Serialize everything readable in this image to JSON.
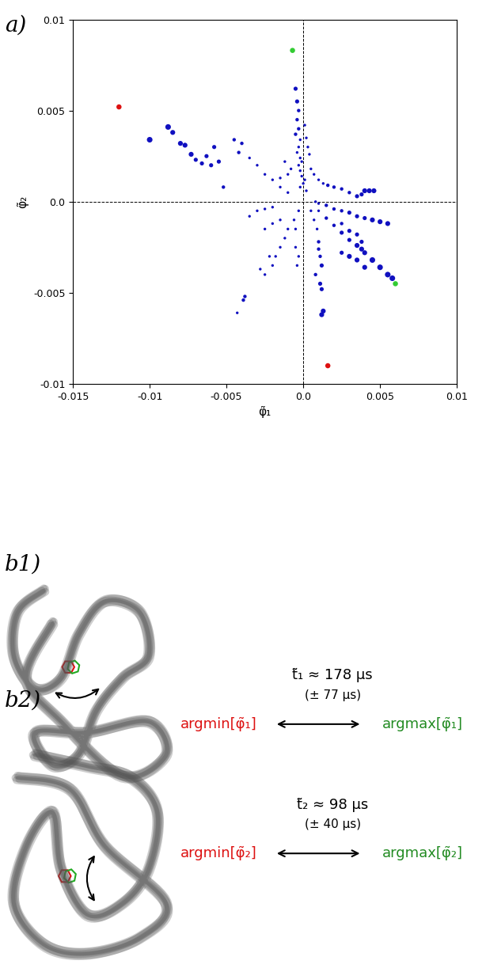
{
  "chart_data": {
    "type": "scatter",
    "panel_label": "a)",
    "x_label": "φ̃₁",
    "y_label": "φ̃₂",
    "xlim": [
      -0.015,
      0.01
    ],
    "ylim": [
      -0.01,
      0.01
    ],
    "xticks": [
      -0.015,
      -0.01,
      -0.005,
      {
        "value": 0,
        "label": "0.0"
      },
      0.005,
      0.01
    ],
    "yticks": [
      -0.01,
      -0.005,
      {
        "value": 0,
        "label": "0.0"
      },
      0.005,
      0.01
    ],
    "reference_lines": {
      "x": 0,
      "y": 0
    },
    "series": [
      {
        "color": "#1010c0",
        "x": [
          -0.01,
          -0.0088,
          -0.0085,
          -0.008,
          -0.0077,
          -0.0073,
          -0.007,
          -0.0066,
          -0.0063,
          -0.006,
          -0.0058,
          -0.0055,
          -0.0052,
          -0.0045,
          -0.0042,
          -0.004,
          -0.0035,
          -0.003,
          -0.0025,
          -0.002,
          -0.0015,
          -0.001,
          -0.0005,
          -0.0004,
          -0.0003,
          -0.0004,
          -0.0003,
          -0.0005,
          -0.0002,
          -0.0003,
          -0.0004,
          -0.0002,
          -0.0001,
          -0.0003,
          -0.0002,
          -0.0001,
          0.0001,
          0.0,
          -0.0002,
          0.0002,
          0.0003,
          0.0004,
          0.0002,
          0.0001,
          -0.0008,
          -0.001,
          -0.0012,
          -0.0015,
          0.0005,
          0.0007,
          0.001,
          0.0013,
          0.0016,
          0.002,
          0.0025,
          0.003,
          0.0035,
          0.004,
          0.0043,
          0.0046,
          0.0038,
          0.0008,
          0.001,
          0.0015,
          0.002,
          0.0025,
          0.003,
          0.0035,
          0.004,
          0.0045,
          0.005,
          0.0055,
          0.001,
          0.0015,
          0.002,
          0.0025,
          0.003,
          0.0035,
          0.0038,
          0.004,
          0.0045,
          0.005,
          0.0055,
          0.0058,
          0.0025,
          0.003,
          0.0035,
          0.0038,
          0.0025,
          0.003,
          0.0035,
          0.004,
          0.0005,
          0.0007,
          0.0009,
          0.001,
          0.001,
          0.0011,
          0.0012,
          0.0011,
          0.0012,
          0.0013,
          0.0012,
          0.0008,
          -0.0003,
          -0.0006,
          -0.001,
          -0.0012,
          -0.0015,
          -0.0018,
          -0.002,
          -0.0025,
          -0.0038,
          -0.0039,
          -0.0043,
          -0.0022,
          -0.0028,
          -0.0015,
          -0.002,
          -0.0025,
          -0.003,
          -0.0025,
          -0.002,
          -0.0035,
          -0.0005,
          -0.0003,
          -0.0004,
          -0.0005
        ],
        "values": [
          0.0034,
          0.0041,
          0.0038,
          0.0032,
          0.0031,
          0.0026,
          0.0023,
          0.0021,
          0.0025,
          0.002,
          0.003,
          0.0022,
          0.0008,
          0.0034,
          0.0027,
          0.0032,
          0.0024,
          0.002,
          0.0015,
          0.0012,
          0.0008,
          0.0005,
          0.0062,
          0.0055,
          0.005,
          0.0045,
          0.004,
          0.0037,
          0.0034,
          0.003,
          0.0027,
          0.0024,
          0.0022,
          0.002,
          0.0017,
          0.0014,
          0.0012,
          0.001,
          0.0008,
          0.0006,
          0.003,
          0.0026,
          0.0035,
          0.0042,
          0.0018,
          0.0015,
          0.0022,
          0.0013,
          0.0018,
          0.0015,
          0.0012,
          0.001,
          0.0009,
          0.0008,
          0.0007,
          0.0005,
          0.0003,
          0.0006,
          0.0006,
          0.0006,
          0.0004,
          0.0,
          -0.0001,
          -0.0002,
          -0.0004,
          -0.0005,
          -0.0006,
          -0.0008,
          -0.0009,
          -0.001,
          -0.0011,
          -0.0012,
          -0.0005,
          -0.0009,
          -0.0013,
          -0.0017,
          -0.0021,
          -0.0024,
          -0.0026,
          -0.0028,
          -0.0032,
          -0.0036,
          -0.004,
          -0.0042,
          -0.0012,
          -0.0016,
          -0.0018,
          -0.0022,
          -0.0028,
          -0.003,
          -0.0032,
          -0.0036,
          -0.0005,
          -0.001,
          -0.0015,
          -0.0022,
          -0.0026,
          -0.003,
          -0.0035,
          -0.0045,
          -0.0048,
          -0.006,
          -0.0062,
          -0.004,
          -0.0005,
          -0.001,
          -0.0015,
          -0.002,
          -0.0025,
          -0.003,
          -0.0035,
          -0.004,
          -0.0052,
          -0.0054,
          -0.0061,
          -0.003,
          -0.0037,
          -0.001,
          -0.0012,
          -0.0015,
          -0.0005,
          -0.0004,
          -0.0003,
          -0.0008,
          -0.0025,
          -0.003,
          -0.0035,
          -0.0015
        ],
        "sizes": [
          26,
          26,
          20,
          20,
          20,
          20,
          14,
          14,
          14,
          14,
          14,
          14,
          10,
          10,
          10,
          10,
          6,
          6,
          6,
          6,
          6,
          6,
          14,
          14,
          10,
          10,
          10,
          10,
          6,
          6,
          6,
          6,
          6,
          6,
          6,
          6,
          6,
          6,
          6,
          6,
          6,
          6,
          6,
          6,
          6,
          6,
          6,
          6,
          6,
          6,
          6,
          6,
          10,
          10,
          10,
          10,
          14,
          20,
          20,
          20,
          14,
          6,
          6,
          10,
          10,
          10,
          14,
          14,
          14,
          20,
          20,
          20,
          6,
          10,
          10,
          14,
          14,
          20,
          20,
          20,
          26,
          26,
          26,
          26,
          10,
          14,
          14,
          14,
          14,
          20,
          20,
          20,
          6,
          6,
          6,
          10,
          10,
          10,
          14,
          14,
          14,
          20,
          20,
          10,
          6,
          6,
          6,
          6,
          6,
          6,
          6,
          6,
          10,
          10,
          6,
          6,
          6,
          6,
          6,
          6,
          6,
          6,
          6,
          6,
          6,
          6,
          6,
          6
        ]
      },
      {
        "color": "#dd1111",
        "x": [
          -0.012,
          0.0016
        ],
        "values": [
          0.0052,
          -0.009
        ]
      },
      {
        "color": "#33cc33",
        "x": [
          -0.0007,
          0.006
        ],
        "values": [
          0.0083,
          -0.0045
        ]
      }
    ]
  },
  "transitions": [
    {
      "panel_label": "b1)",
      "time": "t̃₁ ≈ 178 μs",
      "uncertainty": "(± 77 μs)",
      "from": "argmin[φ̃₁]",
      "to": "argmax[φ̃₁]",
      "from_color": "#dd1111",
      "to_color": "#228b22"
    },
    {
      "panel_label": "b2)",
      "time": "t̃₂ ≈ 98 μs",
      "uncertainty": "(± 40 μs)",
      "from": "argmin[φ̃₂]",
      "to": "argmax[φ̃₂]",
      "from_color": "#dd1111",
      "to_color": "#228b22"
    }
  ]
}
